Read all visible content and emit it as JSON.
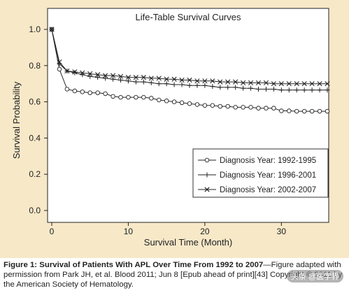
{
  "chart_data": {
    "type": "line",
    "title": "Life-Table Survival Curves",
    "xlabel": "Survival Time (Month)",
    "ylabel": "Survival Probability",
    "xlim": [
      0,
      36
    ],
    "ylim": [
      0,
      1.0
    ],
    "x_ticks": [
      0,
      10,
      20,
      30
    ],
    "y_ticks": [
      0.0,
      0.2,
      0.4,
      0.6,
      0.8,
      1.0
    ],
    "x_tick_labels": [
      "0",
      "10",
      "20",
      "30"
    ],
    "y_tick_labels": [
      "0.0",
      "0.2",
      "0.4",
      "0.6",
      "0.8",
      "1.0"
    ],
    "grid": false,
    "legend_position": "bottom-right",
    "x": [
      0,
      1,
      2,
      3,
      4,
      5,
      6,
      7,
      8,
      9,
      10,
      11,
      12,
      13,
      14,
      15,
      16,
      17,
      18,
      19,
      20,
      21,
      22,
      23,
      24,
      25,
      26,
      27,
      28,
      29,
      30,
      31,
      32,
      33,
      34,
      35,
      36
    ],
    "series": [
      {
        "name": "Diagnosis Year: 1992-1995",
        "marker": "circle",
        "values": [
          1.0,
          0.78,
          0.67,
          0.66,
          0.655,
          0.65,
          0.65,
          0.645,
          0.63,
          0.625,
          0.625,
          0.625,
          0.625,
          0.62,
          0.61,
          0.605,
          0.6,
          0.595,
          0.59,
          0.585,
          0.58,
          0.58,
          0.575,
          0.575,
          0.57,
          0.57,
          0.57,
          0.565,
          0.565,
          0.565,
          0.55,
          0.55,
          0.548,
          0.548,
          0.548,
          0.548,
          0.548
        ]
      },
      {
        "name": "Diagnosis Year: 1996-2001",
        "marker": "plus",
        "values": [
          1.0,
          0.81,
          0.77,
          0.76,
          0.75,
          0.74,
          0.735,
          0.73,
          0.725,
          0.72,
          0.715,
          0.71,
          0.71,
          0.705,
          0.7,
          0.7,
          0.695,
          0.695,
          0.69,
          0.69,
          0.69,
          0.685,
          0.68,
          0.68,
          0.68,
          0.675,
          0.675,
          0.67,
          0.67,
          0.67,
          0.665,
          0.665,
          0.665,
          0.665,
          0.665,
          0.665,
          0.665
        ]
      },
      {
        "name": "Diagnosis Year: 2002-2007",
        "marker": "x",
        "values": [
          1.0,
          0.82,
          0.77,
          0.765,
          0.76,
          0.755,
          0.75,
          0.745,
          0.745,
          0.74,
          0.735,
          0.735,
          0.735,
          0.73,
          0.73,
          0.725,
          0.725,
          0.72,
          0.72,
          0.715,
          0.715,
          0.715,
          0.71,
          0.71,
          0.71,
          0.705,
          0.705,
          0.705,
          0.705,
          0.7,
          0.7,
          0.7,
          0.7,
          0.7,
          0.7,
          0.7,
          0.7
        ]
      }
    ]
  },
  "caption": {
    "bold": "Figure 1: Survival of Patients With APL Over Time From 1992 to 2007",
    "rest": "—Figure adapted with permission from Park JH, et al. Blood 2011; Jun 8 [Epub ahead of print][43] Copyright © 2011 by the American Society of Hematology."
  },
  "watermark": "头条 @医学界"
}
